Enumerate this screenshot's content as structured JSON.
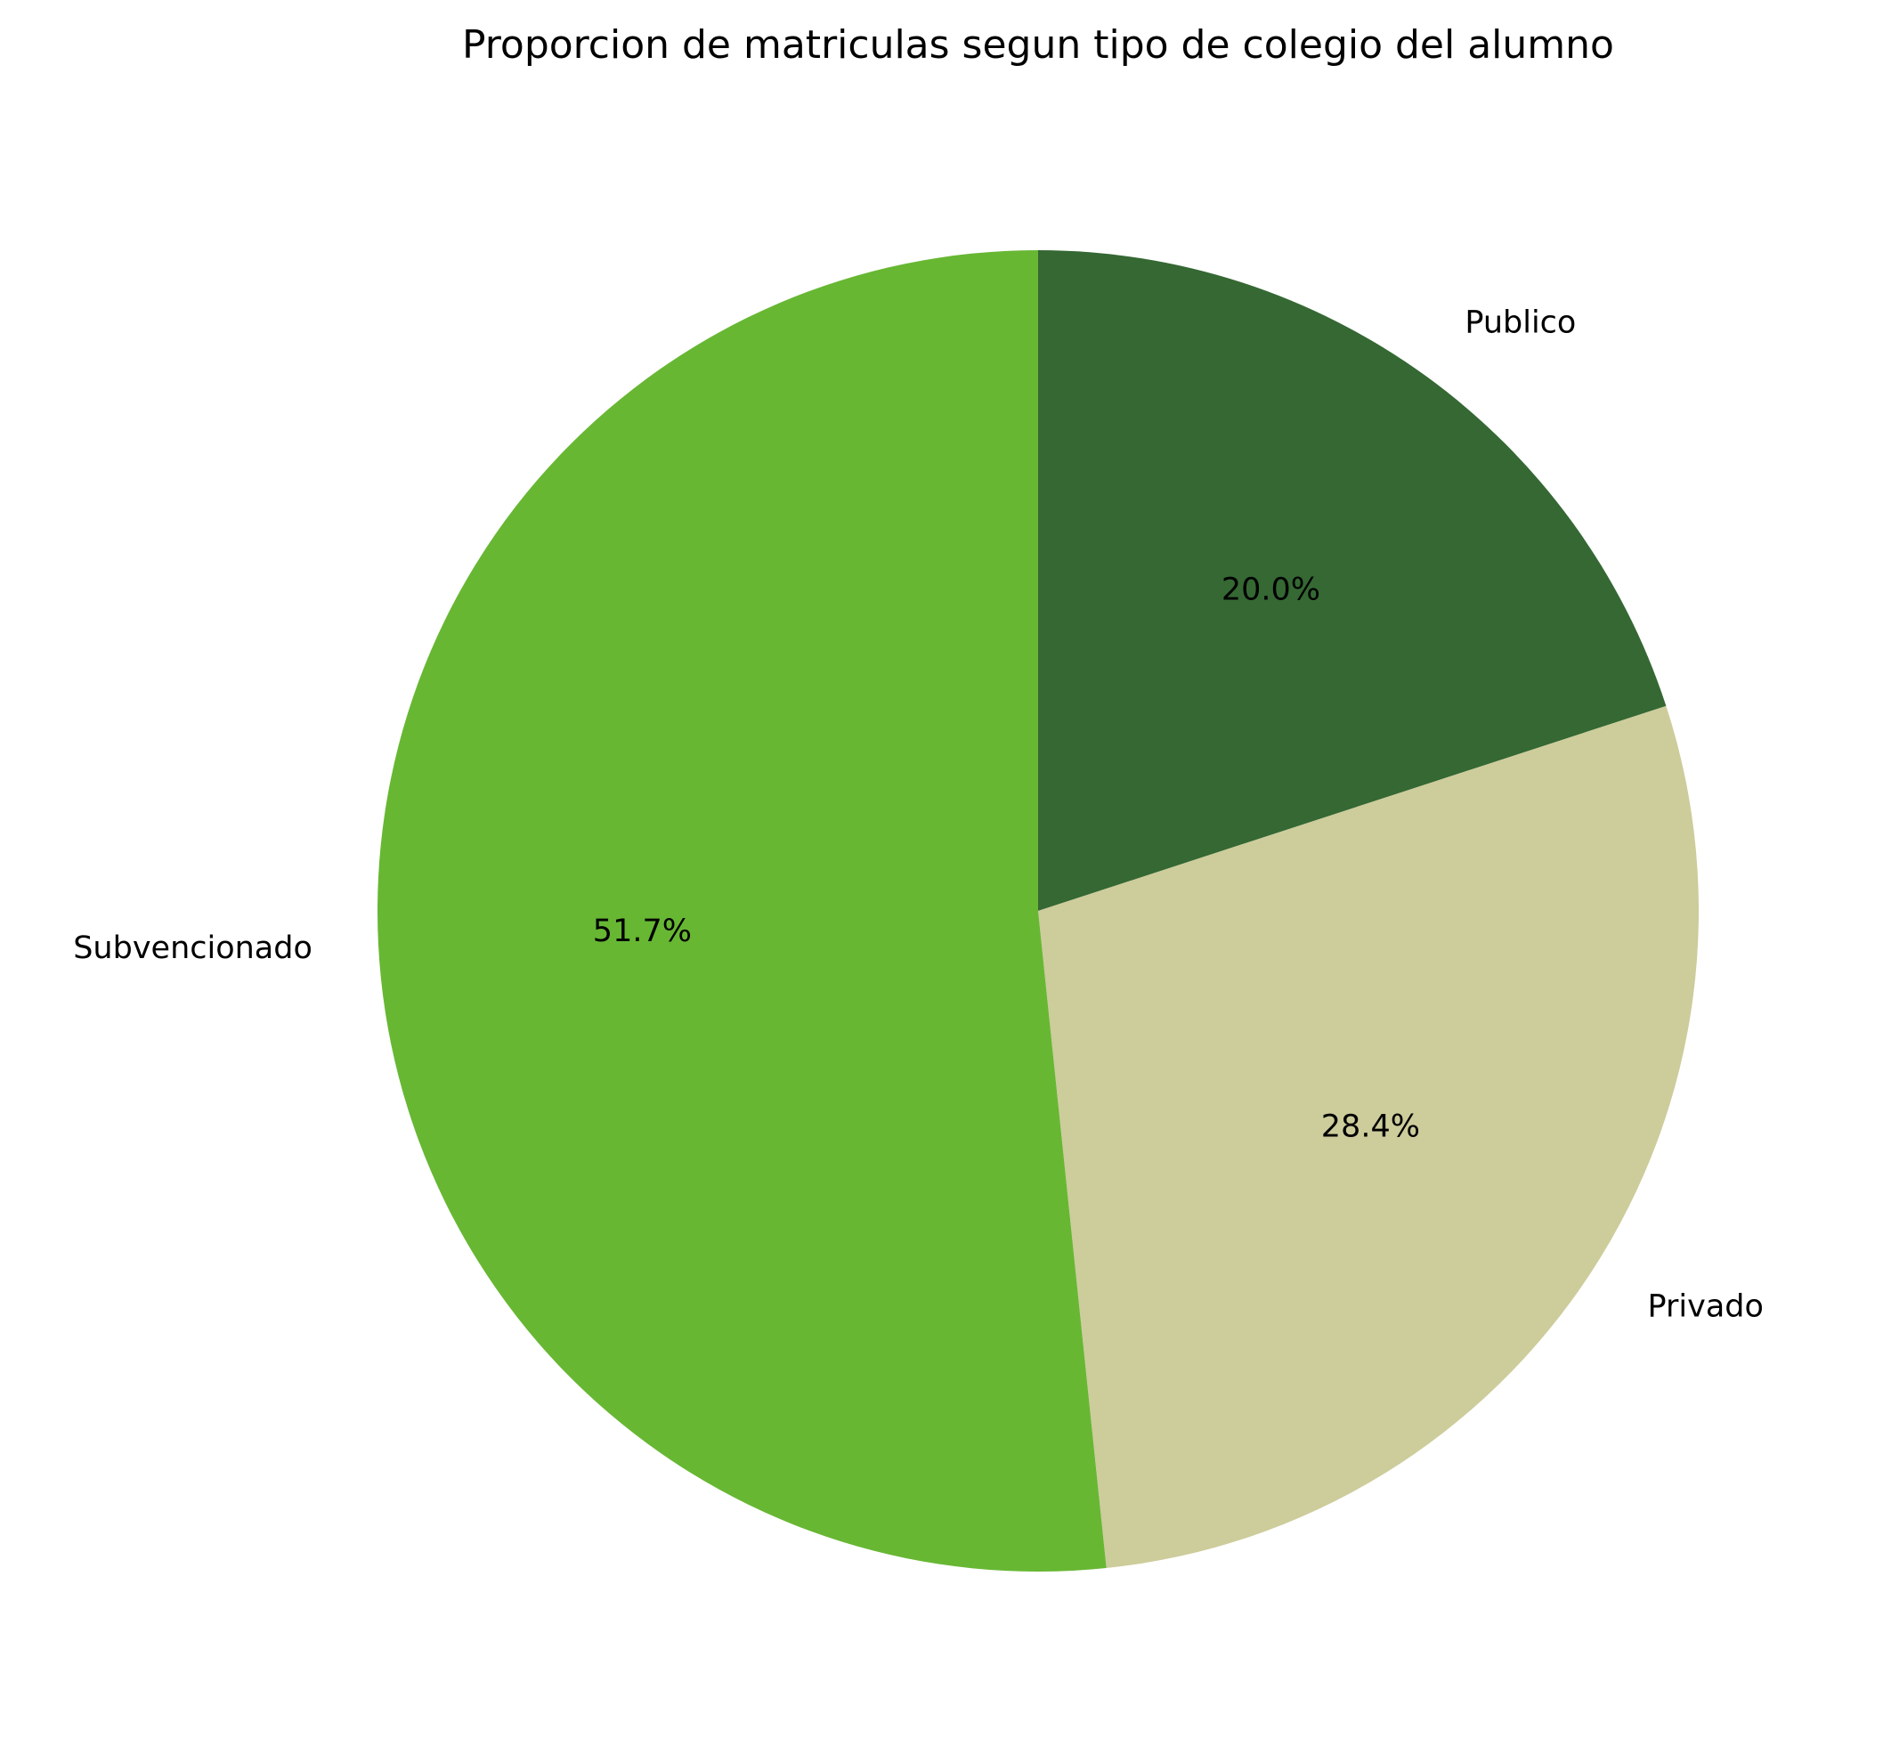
{
  "chart_data": {
    "type": "pie",
    "title": "Proporcion de matriculas segun tipo de colegio del alumno",
    "slices": [
      {
        "label": "Publico",
        "value": 20.0,
        "pct_label": "20.0%",
        "color": "#356833"
      },
      {
        "label": "Privado",
        "value": 28.4,
        "pct_label": "28.4%",
        "color": "#cdcc9b"
      },
      {
        "label": "Subvencionado",
        "value": 51.7,
        "pct_label": "51.7%",
        "color": "#67b733"
      }
    ],
    "start_angle": "top",
    "direction": "clockwise",
    "legend": "none"
  }
}
